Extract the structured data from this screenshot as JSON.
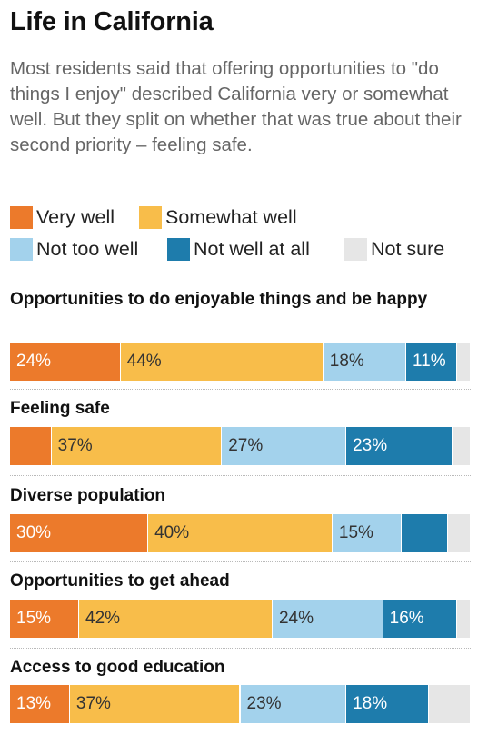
{
  "title": "Life in California",
  "subtitle": "Most residents said that offering opportunities to \"do things I enjoy\" described California very or somewhat well. But they split on whether that was true about their second priority – feeling safe.",
  "legend": [
    {
      "label": "Very well",
      "color": "#ec7a2b"
    },
    {
      "label": "Somewhat well",
      "color": "#f8bd4a"
    },
    {
      "label": "Not too well",
      "color": "#a3d2ec"
    },
    {
      "label": "Not well at all",
      "color": "#1e7cac"
    },
    {
      "label": "Not sure",
      "color": "#e6e6e6"
    }
  ],
  "chart_data": {
    "type": "bar",
    "orientation": "horizontal",
    "stacked": true,
    "percent": true,
    "categories": [
      "Opportunities to do enjoyable things and be happy",
      "Feeling safe",
      "Diverse population",
      "Opportunities to get ahead",
      "Access to good education"
    ],
    "series": [
      {
        "name": "Very well",
        "color": "#ec7a2b",
        "values": [
          24,
          9,
          30,
          15,
          13
        ]
      },
      {
        "name": "Somewhat well",
        "color": "#f8bd4a",
        "values": [
          44,
          37,
          40,
          42,
          37
        ]
      },
      {
        "name": "Not too well",
        "color": "#a3d2ec",
        "values": [
          18,
          27,
          15,
          24,
          23
        ]
      },
      {
        "name": "Not well at all",
        "color": "#1e7cac",
        "values": [
          11,
          23,
          10,
          16,
          18
        ]
      },
      {
        "name": "Not sure",
        "color": "#e6e6e6",
        "values": [
          3,
          4,
          5,
          3,
          9
        ]
      }
    ],
    "data_labels": [
      [
        "24%",
        "44%",
        "18%",
        "11%",
        ""
      ],
      [
        "",
        "37%",
        "27%",
        "23%",
        ""
      ],
      [
        "30%",
        "40%",
        "15%",
        "",
        ""
      ],
      [
        "15%",
        "42%",
        "24%",
        "16%",
        ""
      ],
      [
        "13%",
        "37%",
        "23%",
        "18%",
        ""
      ]
    ],
    "label_colors": [
      "#ffffff",
      "#333333",
      "#333333",
      "#ffffff",
      "#333333"
    ],
    "xlim": [
      0,
      100
    ],
    "grid": false,
    "legend_position": "top-left"
  }
}
